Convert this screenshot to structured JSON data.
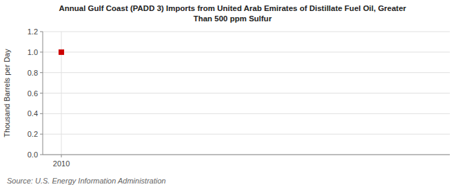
{
  "chart_data": {
    "type": "scatter",
    "title": "Annual Gulf Coast (PADD 3) Imports from United Arab Emirates of Distillate Fuel Oil, Greater\nThan 500 ppm Sulfur",
    "ylabel": "Thousand Barrels per Day",
    "source": "Source: U.S. Energy Information Administration",
    "x": [
      2010
    ],
    "values": [
      1.0
    ],
    "color": "#cc0000",
    "marker": "square",
    "xlim": [
      2009.4,
      2022.5
    ],
    "ylim": [
      0.0,
      1.2
    ],
    "xticks": [
      2010
    ],
    "yticks": [
      {
        "value": 0.0,
        "label": "0.0"
      },
      0.2,
      0.4,
      0.6,
      0.8,
      {
        "value": 1.0,
        "label": "1.0"
      },
      1.2
    ],
    "grid": true
  }
}
